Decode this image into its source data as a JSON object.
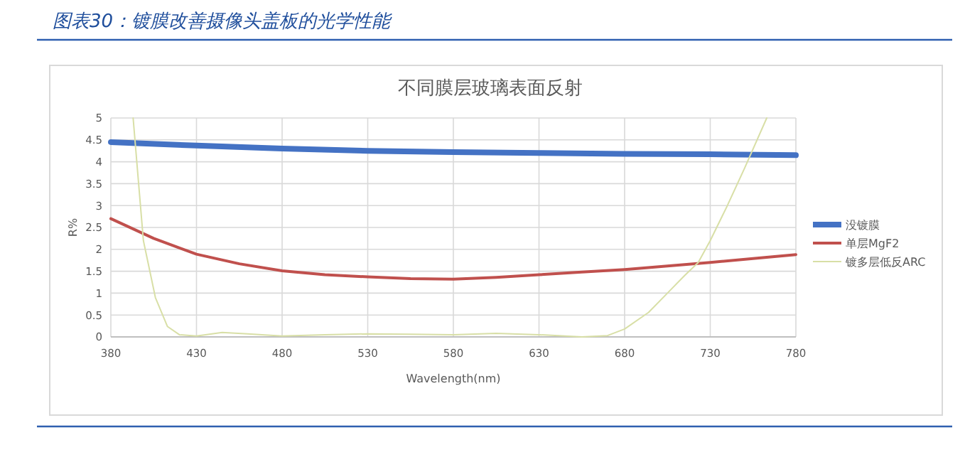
{
  "chart_data": {
    "type": "line",
    "title": "图表30：镀膜改善摄像头盖板的光学性能",
    "subtitle": "不同膜层玻璃表面反射",
    "xlabel": "Wavelength(nm)",
    "ylabel": "R%",
    "xlim": [
      380,
      780
    ],
    "xticks": [
      380,
      430,
      480,
      530,
      580,
      630,
      680,
      730,
      780
    ],
    "ylim": [
      0,
      5
    ],
    "yticks": [
      0,
      0.5,
      1,
      1.5,
      2,
      2.5,
      3,
      3.5,
      4,
      4.5,
      5
    ],
    "grid": true,
    "legend": "right",
    "marker": "none",
    "line_style": "solid",
    "series": [
      {
        "name": "没镀膜",
        "color": "#4472c4",
        "x": [
          380,
          430,
          480,
          530,
          580,
          630,
          680,
          730,
          780
        ],
        "values": [
          4.45,
          4.37,
          4.3,
          4.25,
          4.22,
          4.2,
          4.18,
          4.17,
          4.15
        ]
      },
      {
        "name": "单层MgF2",
        "color": "#c0504d",
        "x": [
          380,
          405,
          430,
          455,
          480,
          505,
          530,
          555,
          580,
          605,
          630,
          655,
          680,
          705,
          730,
          755,
          780
        ],
        "values": [
          2.7,
          2.25,
          1.89,
          1.67,
          1.51,
          1.42,
          1.37,
          1.33,
          1.32,
          1.36,
          1.42,
          1.48,
          1.54,
          1.62,
          1.7,
          1.79,
          1.88
        ]
      },
      {
        "name": "镀多层低反ARC",
        "color": "#d8dfa6",
        "x": [
          393,
          399,
          406,
          413,
          420,
          430,
          445,
          460,
          480,
          505,
          530,
          555,
          580,
          605,
          630,
          655,
          670,
          680,
          694,
          705,
          715,
          723,
          730,
          740,
          750,
          763
        ],
        "values": [
          5.0,
          2.2,
          0.9,
          0.24,
          0.05,
          0.02,
          0.1,
          0.07,
          0.02,
          0.05,
          0.07,
          0.06,
          0.05,
          0.08,
          0.05,
          0.0,
          0.03,
          0.18,
          0.56,
          1.0,
          1.4,
          1.7,
          2.2,
          3.0,
          3.85,
          5.0
        ]
      }
    ]
  }
}
